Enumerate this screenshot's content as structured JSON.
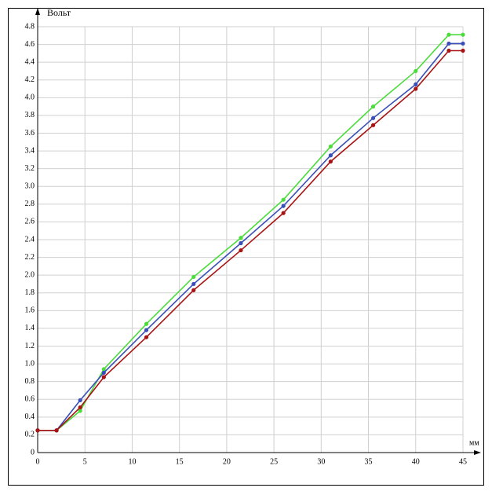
{
  "chart_data": {
    "type": "line",
    "y_label": "Вольт",
    "x_label": "мм",
    "xlim": [
      0,
      45
    ],
    "ylim": [
      0,
      4.8
    ],
    "xticks": [
      0,
      5,
      10,
      15,
      20,
      25,
      30,
      35,
      40,
      45
    ],
    "yticks": [
      0,
      0.2,
      0.4,
      0.6,
      0.8,
      {
        "value": 1,
        "label": "1.0"
      },
      1.2,
      1.4,
      1.6,
      1.8,
      {
        "value": 2,
        "label": "2.0"
      },
      2.2,
      2.4,
      2.6,
      2.8,
      {
        "value": 3,
        "label": "3.0"
      },
      3.2,
      3.4,
      3.6,
      3.8,
      {
        "value": 4,
        "label": "4.0"
      },
      4.2,
      4.4,
      4.6,
      4.8
    ],
    "grid": true,
    "x": [
      0,
      2,
      4.5,
      7,
      11.5,
      16.5,
      21.5,
      26,
      31,
      35.5,
      40,
      43.5,
      45
    ],
    "series": [
      {
        "color": "#4cdc3c",
        "values": [
          0.25,
          0.25,
          0.47,
          0.94,
          1.45,
          1.98,
          2.42,
          2.85,
          3.45,
          3.9,
          4.3,
          4.71,
          4.71
        ]
      },
      {
        "color": "#3a4fb8",
        "values": [
          0.25,
          0.25,
          0.59,
          0.9,
          1.38,
          1.9,
          2.36,
          2.78,
          3.35,
          3.77,
          4.15,
          4.61,
          4.61
        ]
      },
      {
        "color": "#a81414",
        "values": [
          0.25,
          0.25,
          0.51,
          0.85,
          1.3,
          1.83,
          2.28,
          2.7,
          3.28,
          3.69,
          4.1,
          4.53,
          4.53
        ]
      }
    ]
  }
}
